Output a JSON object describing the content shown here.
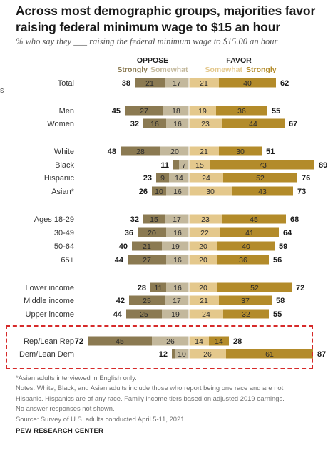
{
  "title": "Across most demographic groups, majorities favor raising federal minimum wage to $15 an hour",
  "subtitle": "% who say they ___ raising the federal minimum wage to $15.00 an hour",
  "edge_mark": "s",
  "colors": {
    "strongly_oppose": "#8b7a52",
    "somewhat_oppose": "#c3b89c",
    "somewhat_favor": "#e4c88c",
    "strongly_favor": "#b38b2a",
    "oppose_header": "#8b7a52",
    "favor_header": "#b38b2a",
    "highlight_box": "#d62a2a"
  },
  "notes": {
    "line1": "*Asian adults interviewed in English only.",
    "line2": "Notes: White, Black, and Asian adults include those who report being one race and are not",
    "line3": "Hispanic. Hispanics are of any race. Family income tiers based on adjusted 2019 earnings.",
    "line4": "No answer responses not shown.",
    "line5": "Source: Survey of U.S. adults conducted April 5-11, 2021."
  },
  "brand": "PEW RESEARCH CENTER",
  "chart_data": {
    "type": "bar",
    "orientation": "horizontal-diverging",
    "headers": {
      "oppose": "OPPOSE",
      "favor": "FAVOR",
      "strongly_oppose": "Strongly",
      "somewhat_oppose": "Somewhat",
      "somewhat_favor": "Somewhat",
      "strongly_favor": "Strongly"
    },
    "series": [
      {
        "name": "Strongly oppose"
      },
      {
        "name": "Somewhat oppose"
      },
      {
        "name": "Somewhat favor"
      },
      {
        "name": "Strongly favor"
      }
    ],
    "rows": [
      {
        "label": "Total",
        "oppose_total": 38,
        "strongly_oppose": 21,
        "somewhat_oppose": 17,
        "somewhat_favor": 21,
        "strongly_favor": 40,
        "favor_total": 62
      },
      {
        "label": "Men",
        "oppose_total": 45,
        "strongly_oppose": 27,
        "somewhat_oppose": 18,
        "somewhat_favor": 19,
        "strongly_favor": 36,
        "favor_total": 55
      },
      {
        "label": "Women",
        "oppose_total": 32,
        "strongly_oppose": 16,
        "somewhat_oppose": 16,
        "somewhat_favor": 23,
        "strongly_favor": 44,
        "favor_total": 67
      },
      {
        "label": "White",
        "oppose_total": 48,
        "strongly_oppose": 28,
        "somewhat_oppose": 20,
        "somewhat_favor": 21,
        "strongly_favor": 30,
        "favor_total": 51
      },
      {
        "label": "Black",
        "oppose_total": 11,
        "strongly_oppose": 4,
        "somewhat_oppose": 7,
        "somewhat_favor": 15,
        "strongly_favor": 73,
        "favor_total": 89,
        "hide_strongly_oppose_label": true
      },
      {
        "label": "Hispanic",
        "oppose_total": 23,
        "strongly_oppose": 9,
        "somewhat_oppose": 14,
        "somewhat_favor": 24,
        "strongly_favor": 52,
        "favor_total": 76
      },
      {
        "label": "Asian*",
        "oppose_total": 26,
        "strongly_oppose": 10,
        "somewhat_oppose": 16,
        "somewhat_favor": 30,
        "strongly_favor": 43,
        "favor_total": 73
      },
      {
        "label": "Ages 18-29",
        "oppose_total": 32,
        "strongly_oppose": 15,
        "somewhat_oppose": 17,
        "somewhat_favor": 23,
        "strongly_favor": 45,
        "favor_total": 68
      },
      {
        "label": "30-49",
        "oppose_total": 36,
        "strongly_oppose": 20,
        "somewhat_oppose": 16,
        "somewhat_favor": 22,
        "strongly_favor": 41,
        "favor_total": 64
      },
      {
        "label": "50-64",
        "oppose_total": 40,
        "strongly_oppose": 21,
        "somewhat_oppose": 19,
        "somewhat_favor": 20,
        "strongly_favor": 40,
        "favor_total": 59
      },
      {
        "label": "65+",
        "oppose_total": 44,
        "strongly_oppose": 27,
        "somewhat_oppose": 16,
        "somewhat_favor": 20,
        "strongly_favor": 36,
        "favor_total": 56
      },
      {
        "label": "Lower income",
        "oppose_total": 28,
        "strongly_oppose": 11,
        "somewhat_oppose": 16,
        "somewhat_favor": 20,
        "strongly_favor": 52,
        "favor_total": 72
      },
      {
        "label": "Middle income",
        "oppose_total": 42,
        "strongly_oppose": 25,
        "somewhat_oppose": 17,
        "somewhat_favor": 21,
        "strongly_favor": 37,
        "favor_total": 58
      },
      {
        "label": "Upper income",
        "oppose_total": 44,
        "strongly_oppose": 25,
        "somewhat_oppose": 19,
        "somewhat_favor": 24,
        "strongly_favor": 32,
        "favor_total": 55
      },
      {
        "label": "Rep/Lean Rep",
        "oppose_total": 72,
        "strongly_oppose": 45,
        "somewhat_oppose": 26,
        "somewhat_favor": 14,
        "strongly_favor": 14,
        "favor_total": 28
      },
      {
        "label": "Dem/Lean Dem",
        "oppose_total": 12,
        "strongly_oppose": 2,
        "somewhat_oppose": 10,
        "somewhat_favor": 26,
        "strongly_favor": 61,
        "favor_total": 87,
        "hide_strongly_oppose_label": true
      }
    ]
  }
}
